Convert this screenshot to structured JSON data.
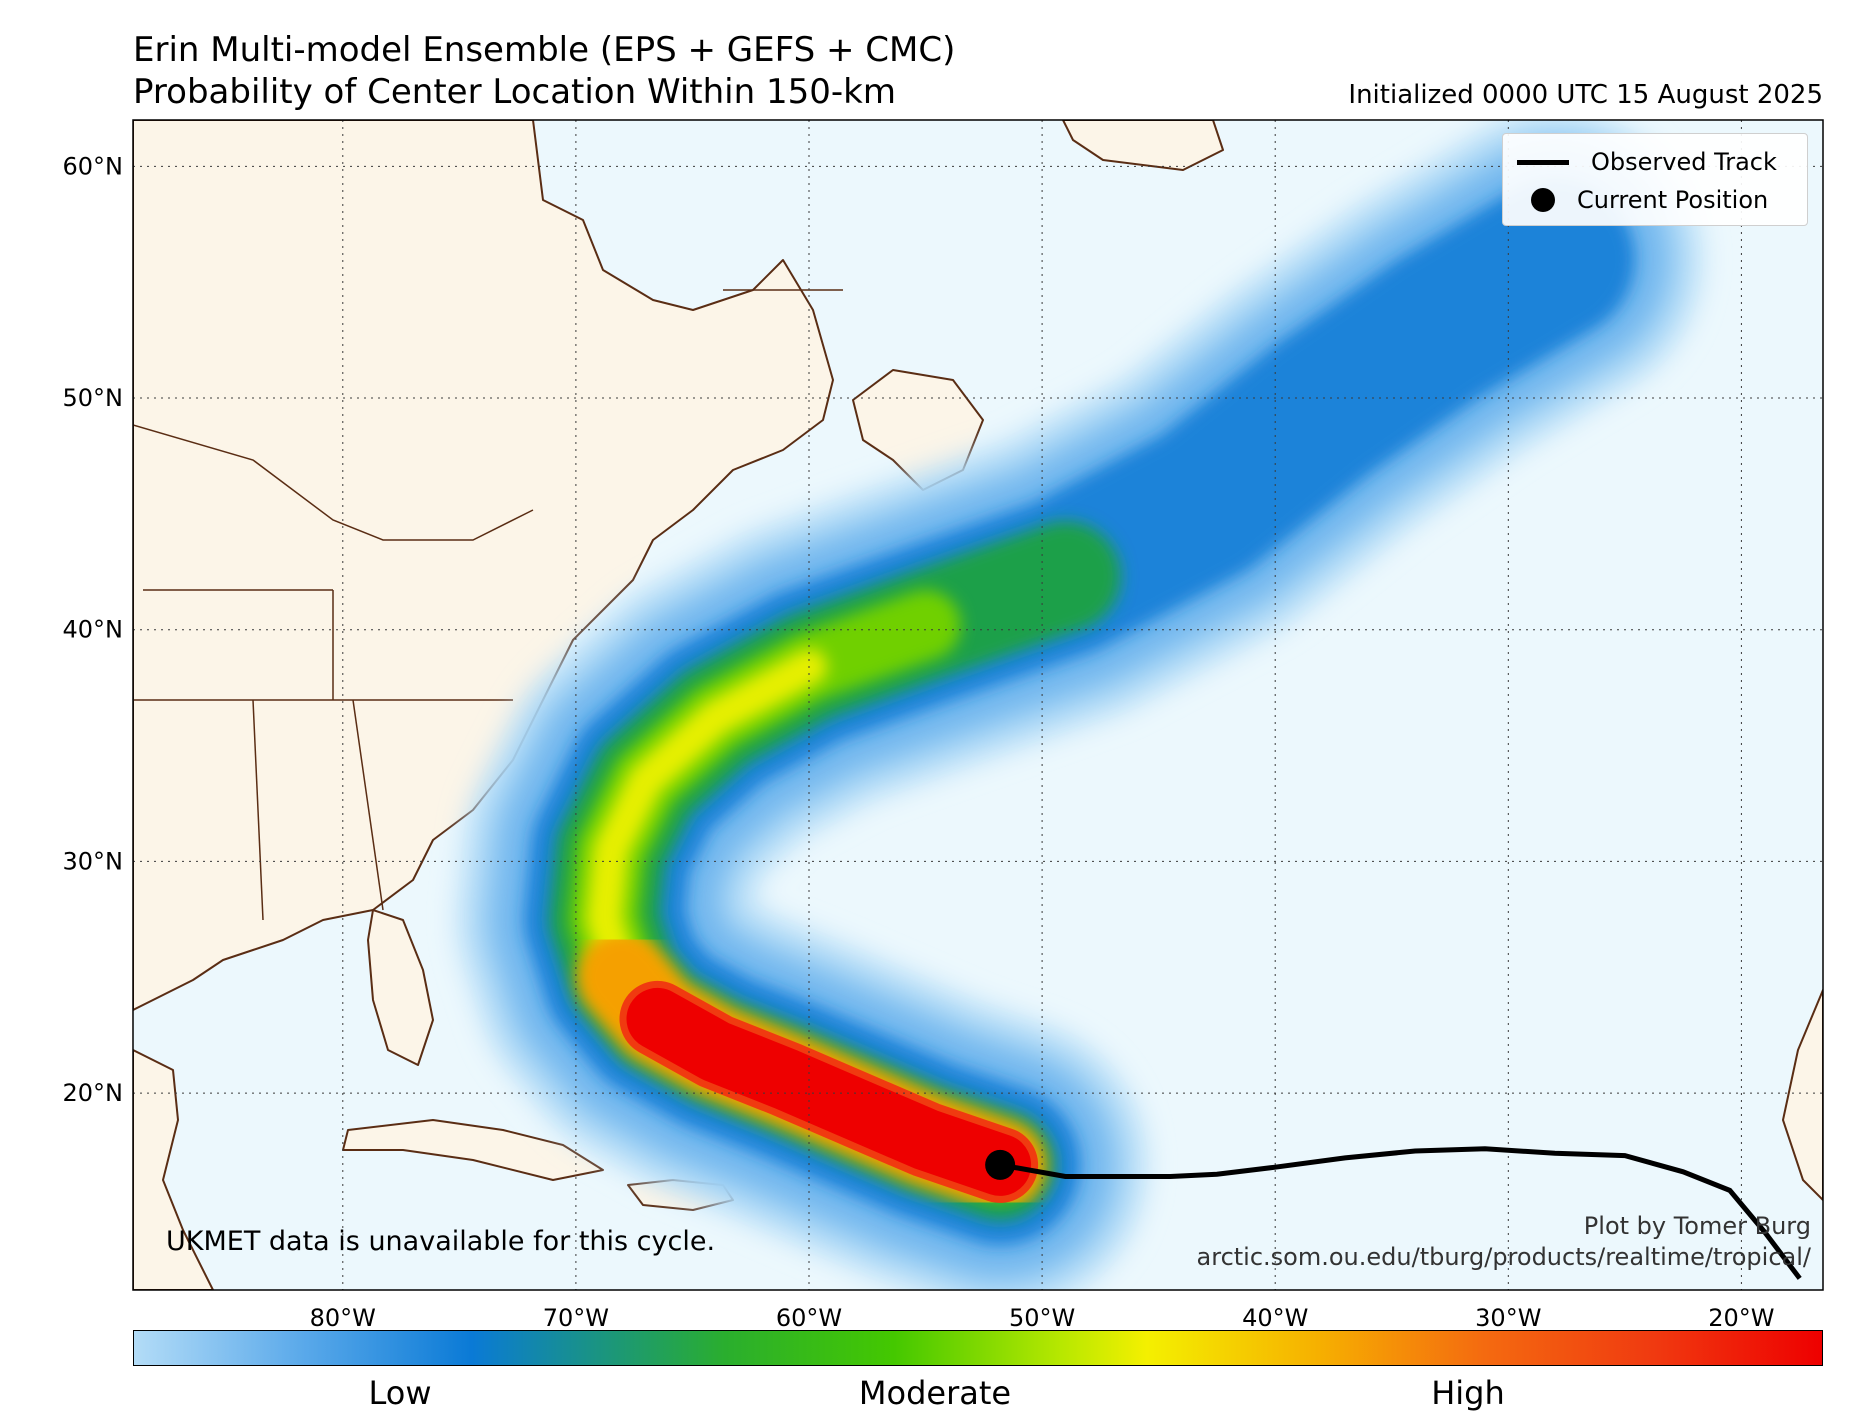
{
  "header": {
    "title_line1": "Erin Multi-model Ensemble (EPS + GEFS + CMC)",
    "title_line2": "Probability of Center Location Within 150-km",
    "initialized": "Initialized 0000 UTC 15 August 2025"
  },
  "map": {
    "extent": {
      "lon": [
        -89,
        -16.5
      ],
      "lat": [
        11.5,
        62
      ]
    },
    "lat_ticks": [
      {
        "value": 60,
        "label": "60°N"
      },
      {
        "value": 50,
        "label": "50°N"
      },
      {
        "value": 40,
        "label": "40°N"
      },
      {
        "value": 30,
        "label": "30°N"
      },
      {
        "value": 20,
        "label": "20°N"
      }
    ],
    "lon_ticks": [
      {
        "value": -80,
        "label": "80°W"
      },
      {
        "value": -70,
        "label": "70°W"
      },
      {
        "value": -60,
        "label": "60°W"
      },
      {
        "value": -50,
        "label": "50°W"
      },
      {
        "value": -40,
        "label": "40°W"
      },
      {
        "value": -30,
        "label": "30°W"
      },
      {
        "value": -20,
        "label": "20°W"
      }
    ],
    "colors": {
      "ocean": "#ecf8fd",
      "land": "#fcf5e8",
      "coast": "#5a2d14",
      "track": "#000000"
    },
    "observed_track": [
      [
        -17.5,
        12
      ],
      [
        -19,
        14
      ],
      [
        -20.5,
        15.8
      ],
      [
        -22.5,
        16.6
      ],
      [
        -25,
        17.3
      ],
      [
        -28,
        17.4
      ],
      [
        -31,
        17.6
      ],
      [
        -34,
        17.5
      ],
      [
        -37,
        17.2
      ],
      [
        -40,
        16.8
      ],
      [
        -42.5,
        16.5
      ],
      [
        -44.5,
        16.4
      ],
      [
        -49,
        16.4
      ],
      [
        -51.8,
        16.9
      ]
    ],
    "current_position": [
      -51.8,
      16.9
    ],
    "probability_axis": [
      [
        -51.8,
        16.9
      ],
      [
        -55,
        18
      ],
      [
        -58,
        19.3
      ],
      [
        -61,
        20.6
      ],
      [
        -64,
        21.8
      ],
      [
        -66.5,
        23.2
      ],
      [
        -68,
        25
      ],
      [
        -68.8,
        27.5
      ],
      [
        -68.5,
        30.5
      ],
      [
        -67,
        33.5
      ],
      [
        -64,
        36.2
      ],
      [
        -60,
        38.4
      ],
      [
        -55,
        40.2
      ],
      [
        -49,
        42.3
      ],
      [
        -43,
        45.5
      ],
      [
        -38,
        49.5
      ],
      [
        -33,
        53
      ],
      [
        -28,
        56
      ]
    ],
    "ukmet_note": "UKMET data is unavailable for this cycle.",
    "credit_line1": "Plot by Tomer Burg",
    "credit_line2": "arctic.som.ou.edu/tburg/products/realtime/tropical/"
  },
  "legend": {
    "observed_track": "Observed Track",
    "current_position": "Current Position"
  },
  "colorbar": {
    "low": "Low",
    "moderate": "Moderate",
    "high": "High"
  }
}
